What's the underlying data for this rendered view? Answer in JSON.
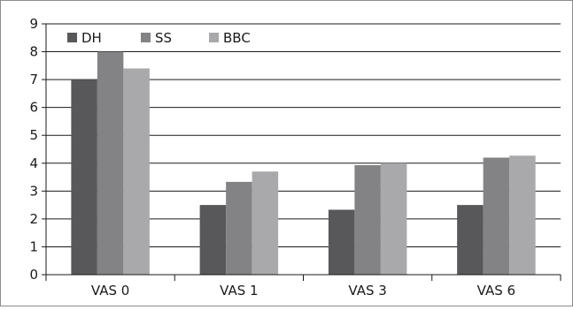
{
  "chart_data": {
    "type": "bar",
    "categories": [
      "VAS 0",
      "VAS 1",
      "VAS 3",
      "VAS 6"
    ],
    "series": [
      {
        "name": "DH",
        "values": [
          7.0,
          2.5,
          2.33,
          2.5
        ],
        "color": "#58585a"
      },
      {
        "name": "SS",
        "values": [
          8.0,
          3.33,
          3.93,
          4.2
        ],
        "color": "#838385"
      },
      {
        "name": "BBC",
        "values": [
          7.4,
          3.7,
          4.0,
          4.27
        ],
        "color": "#a9a9ab"
      }
    ],
    "title": "",
    "xlabel": "",
    "ylabel": "",
    "ylim": [
      0,
      9
    ],
    "yticks": [
      "0",
      "1",
      "2",
      "3",
      "4",
      "5",
      "6",
      "7",
      "8",
      "9"
    ],
    "grid": true,
    "legend_position": "top-left"
  }
}
